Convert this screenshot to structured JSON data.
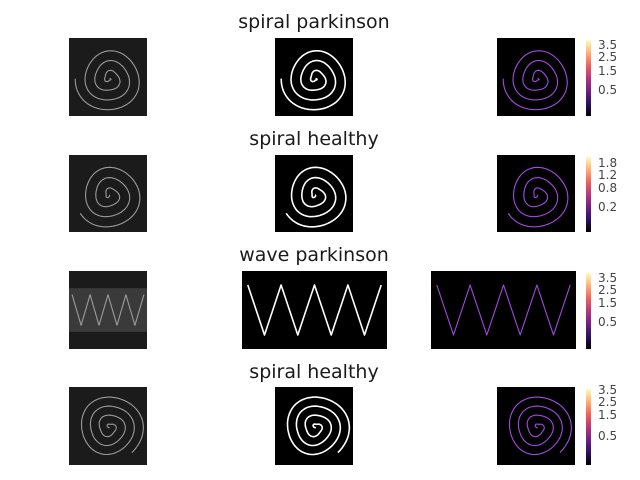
{
  "rows": [
    {
      "title": "spiral parkinson",
      "type": "spiral",
      "colorbar_ticks": [
        "3.5",
        "2.5",
        "1.5",
        "0.5"
      ]
    },
    {
      "title": "spiral healthy",
      "type": "spiral",
      "colorbar_ticks": [
        "1.8",
        "1.2",
        "0.8",
        "0.2"
      ]
    },
    {
      "title": "wave parkinson",
      "type": "wave",
      "colorbar_ticks": [
        "3.5",
        "2.5",
        "1.5",
        "0.5"
      ]
    },
    {
      "title": "spiral healthy",
      "type": "spiral",
      "colorbar_ticks": [
        "3.5",
        "2.5",
        "1.5",
        "0.5"
      ]
    }
  ],
  "colors": {
    "background_panel": "#000000",
    "grayscale_stroke": "#9a9a9a",
    "edge_stroke": "#ffffff",
    "magnitude_stroke": "#a24be0",
    "colormap": "magma"
  },
  "chart_data": [
    {
      "type": "image",
      "title": "spiral parkinson",
      "panels": [
        "grayscale",
        "edges",
        "gradient magnitude"
      ],
      "colorbar_ticks": [
        3.5,
        2.5,
        1.5,
        0.5
      ]
    },
    {
      "type": "image",
      "title": "spiral healthy",
      "panels": [
        "grayscale",
        "edges",
        "gradient magnitude"
      ],
      "colorbar_ticks": [
        1.8,
        1.2,
        0.8,
        0.2
      ]
    },
    {
      "type": "image",
      "title": "wave parkinson",
      "panels": [
        "grayscale",
        "edges",
        "gradient magnitude"
      ],
      "colorbar_ticks": [
        3.5,
        2.5,
        1.5,
        0.5
      ]
    },
    {
      "type": "image",
      "title": "spiral healthy",
      "panels": [
        "grayscale",
        "edges",
        "gradient magnitude"
      ],
      "colorbar_ticks": [
        3.5,
        2.5,
        1.5,
        0.5
      ]
    }
  ]
}
